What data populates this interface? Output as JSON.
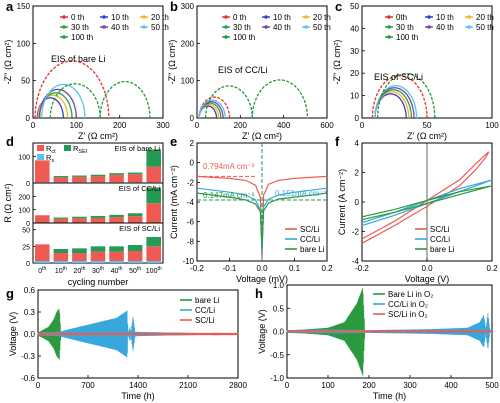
{
  "colors": {
    "c0": "#e8302a",
    "c10": "#2f3fd6",
    "c20": "#f2b71e",
    "c30": "#2e9c4a",
    "c40": "#6f4aa8",
    "c50": "#5cc2f0",
    "c100": "#1f9a3c",
    "red": "#ef5b52",
    "blue": "#37a7dc",
    "green": "#2b9a3f",
    "dgreen": "#249a55"
  },
  "chart_data": [
    {
      "panel": "a",
      "type": "line",
      "xlabel": "Z' (Ω cm²)",
      "ylabel": "-Z'' (Ω cm²)",
      "xlim": [
        0,
        300
      ],
      "ylim": [
        0,
        150
      ],
      "xticks": [
        0,
        100,
        200,
        300
      ],
      "yticks": [
        0,
        50,
        100,
        150
      ],
      "annotation": "EIS of bare Li",
      "legend": [
        "0 th",
        "10 th",
        "20 th",
        "30 th",
        "40 th",
        "50 th",
        "100 th"
      ],
      "series": [
        {
          "name": "0 th",
          "color": "c0",
          "dashed": true,
          "arcs": [
            [
              5,
              175,
              0.9
            ]
          ]
        },
        {
          "name": "10 th",
          "color": "c10",
          "dashed": false,
          "arcs": [
            [
              10,
              70,
              0.9
            ]
          ]
        },
        {
          "name": "20 th",
          "color": "c20",
          "dashed": false,
          "arcs": [
            [
              12,
              80,
              0.9
            ]
          ]
        },
        {
          "name": "30 th",
          "color": "c30",
          "dashed": false,
          "arcs": [
            [
              15,
              90,
              0.9
            ]
          ]
        },
        {
          "name": "40 th",
          "color": "c40",
          "dashed": false,
          "arcs": [
            [
              15,
              100,
              0.9
            ]
          ]
        },
        {
          "name": "50 th",
          "color": "c50",
          "dashed": false,
          "arcs": [
            [
              20,
              120,
              0.9
            ]
          ]
        },
        {
          "name": "100 th",
          "color": "c100",
          "dashed": true,
          "arcs": [
            [
              40,
              155,
              0.8
            ],
            [
              155,
              270,
              0.85
            ]
          ]
        }
      ]
    },
    {
      "panel": "b",
      "type": "line",
      "xlabel": "Z' (Ω cm²)",
      "ylabel": "-Z'' (Ω cm²)",
      "xlim": [
        0,
        600
      ],
      "ylim": [
        0,
        300
      ],
      "xticks": [
        0,
        200,
        400,
        600
      ],
      "yticks": [
        0,
        100,
        200,
        300
      ],
      "annotation": "EIS of CC/Li",
      "legend": [
        "0 th",
        "10 th",
        "20 th",
        "30 th",
        "40 th",
        "50 th",
        "100 th"
      ],
      "series": [
        {
          "name": "0 th",
          "color": "c0",
          "dashed": true,
          "arcs": [
            [
              10,
              150,
              0.8
            ]
          ]
        },
        {
          "name": "10 th",
          "color": "c10",
          "dashed": false,
          "arcs": [
            [
              10,
              90,
              0.8
            ]
          ]
        },
        {
          "name": "20 th",
          "color": "c20",
          "dashed": false,
          "arcs": [
            [
              10,
              100,
              0.8
            ]
          ]
        },
        {
          "name": "30 th",
          "color": "c30",
          "dashed": false,
          "arcs": [
            [
              10,
              110,
              0.8
            ]
          ]
        },
        {
          "name": "40 th",
          "color": "c40",
          "dashed": false,
          "arcs": [
            [
              10,
              120,
              0.8
            ]
          ]
        },
        {
          "name": "50 th",
          "color": "c50",
          "dashed": false,
          "arcs": [
            [
              10,
              130,
              0.8
            ]
          ]
        },
        {
          "name": "100 th",
          "color": "c100",
          "dashed": true,
          "arcs": [
            [
              40,
              255,
              0.8
            ],
            [
              255,
              510,
              0.8
            ]
          ]
        }
      ]
    },
    {
      "panel": "c",
      "type": "line",
      "xlabel": "Z' (Ω cm²)",
      "ylabel": "-Z'' (Ω cm²)",
      "xlim": [
        0,
        100
      ],
      "ylim": [
        0,
        50
      ],
      "xticks": [
        0,
        50,
        100
      ],
      "yticks": [
        0,
        10,
        20,
        30,
        40,
        50
      ],
      "annotation": "EIS of SC/Li",
      "legend": [
        "0th",
        "10 th",
        "20 th",
        "30 th",
        "40 th",
        "50 th",
        "100 th"
      ],
      "series": [
        {
          "name": "0th",
          "color": "c0",
          "dashed": true,
          "arcs": [
            [
              8,
              50,
              0.9
            ]
          ]
        },
        {
          "name": "10 th",
          "color": "c10",
          "dashed": false,
          "arcs": [
            [
              10,
              34,
              0.9
            ]
          ]
        },
        {
          "name": "20 th",
          "color": "c20",
          "dashed": false,
          "arcs": [
            [
              10,
              36,
              0.9
            ]
          ]
        },
        {
          "name": "30 th",
          "color": "c30",
          "dashed": false,
          "arcs": [
            [
              10,
              38,
              0.9
            ]
          ]
        },
        {
          "name": "40 th",
          "color": "c40",
          "dashed": false,
          "arcs": [
            [
              10,
              40,
              0.9
            ]
          ]
        },
        {
          "name": "50 th",
          "color": "c50",
          "dashed": false,
          "arcs": [
            [
              10,
              42,
              0.9
            ]
          ]
        },
        {
          "name": "100 th",
          "color": "c100",
          "dashed": true,
          "arcs": [
            [
              12,
              56,
              0.9
            ]
          ]
        }
      ]
    },
    {
      "panel": "d",
      "type": "bar",
      "xlabel": "cycling number",
      "ylabel": "R (Ω cm²)",
      "categories": [
        "0th",
        "10th",
        "20th",
        "30th",
        "40th",
        "50th",
        "100th"
      ],
      "legend": [
        "R_ct",
        "R_SEI",
        "R_s"
      ],
      "subplots": [
        {
          "label": "EIS of bare Li",
          "ylim": [
            0,
            150
          ],
          "yticks": [
            0,
            100
          ],
          "rct": [
            82,
            18,
            20,
            22,
            28,
            30,
            58
          ],
          "rsei": [
            0,
            5,
            5,
            6,
            6,
            6,
            65
          ],
          "rs": [
            3,
            3,
            3,
            3,
            3,
            3,
            3
          ]
        },
        {
          "label": "EIS of CC/Li",
          "ylim": [
            0,
            300
          ],
          "yticks": [
            0,
            100,
            200
          ],
          "rct": [
            55,
            28,
            32,
            35,
            40,
            48,
            145
          ],
          "rsei": [
            0,
            10,
            12,
            15,
            18,
            22,
            118
          ],
          "rs": [
            3,
            3,
            3,
            3,
            3,
            3,
            3
          ]
        },
        {
          "label": "EIS of SC/Li",
          "ylim": [
            0,
            60
          ],
          "yticks": [
            0,
            25,
            50
          ],
          "rct": [
            25,
            12,
            12,
            14,
            14,
            15,
            22
          ],
          "rsei": [
            0,
            6,
            7,
            8,
            8,
            9,
            14
          ],
          "rs": [
            3,
            3,
            3,
            3,
            3,
            3,
            3
          ]
        }
      ]
    },
    {
      "panel": "e",
      "type": "line",
      "xlabel": "Voltage (mV)",
      "ylabel": "Current (mA cm⁻²)",
      "xlim": [
        -0.2,
        0.2
      ],
      "ylim": [
        -10,
        2
      ],
      "xticks": [
        -0.2,
        -0.1,
        0.0,
        0.1,
        0.2
      ],
      "yticks": [
        -10,
        -8,
        -6,
        -4,
        -2,
        0,
        2
      ],
      "annotations": [
        "0.794mA cm⁻²",
        "0.147mA cm⁻²",
        "0.151mA cm⁻²"
      ],
      "legend": [
        "SC/Li",
        "CC/Li",
        "bare Li"
      ],
      "series": [
        {
          "name": "SC/Li",
          "color": "red",
          "x": [
            -0.2,
            -0.15,
            -0.1,
            -0.05,
            -0.02,
            -0.005,
            0,
            0.005,
            0.02,
            0.05,
            0.1,
            0.15,
            0.2
          ],
          "y": [
            -1.4,
            -1.5,
            -1.6,
            -1.8,
            -2.3,
            -3.5,
            -9.8,
            -3.3,
            -2.2,
            -1.8,
            -1.6,
            -1.5,
            -1.4
          ]
        },
        {
          "name": "CC/Li",
          "color": "blue",
          "x": [
            -0.2,
            -0.15,
            -0.1,
            -0.05,
            -0.02,
            -0.005,
            0,
            0.005,
            0.02,
            0.05,
            0.1,
            0.15,
            0.2
          ],
          "y": [
            -2.6,
            -2.8,
            -3.0,
            -3.3,
            -3.8,
            -4.8,
            -9.0,
            -4.5,
            -3.7,
            -3.3,
            -3.0,
            -2.8,
            -2.6
          ]
        },
        {
          "name": "bare Li",
          "color": "green",
          "x": [
            -0.2,
            -0.15,
            -0.1,
            -0.05,
            -0.02,
            -0.005,
            0,
            0.005,
            0.02,
            0.05,
            0.1,
            0.15,
            0.2
          ],
          "y": [
            -3.1,
            -3.3,
            -3.5,
            -3.8,
            -4.2,
            -5.0,
            -8.5,
            -4.9,
            -4.1,
            -3.7,
            -3.5,
            -3.3,
            -3.1
          ]
        }
      ]
    },
    {
      "panel": "f",
      "type": "line",
      "xlabel": "Voltage (V)",
      "ylabel": "Current (A cm⁻²)",
      "xlim": [
        -0.2,
        0.2
      ],
      "ylim": [
        -4,
        4
      ],
      "xticks": [
        -0.2,
        0.0,
        0.2
      ],
      "yticks": [
        -4,
        -2,
        0,
        2,
        4
      ],
      "legend": [
        "SC/Li",
        "CC/Li",
        "bare Li"
      ],
      "series": [
        {
          "name": "SC/Li",
          "color": "red",
          "x": [
            -0.2,
            -0.1,
            0,
            0.1,
            0.15,
            0.18,
            0.19,
            0.18,
            0.15,
            0.1,
            0,
            -0.1,
            -0.2
          ],
          "y": [
            -2.8,
            -1.6,
            -0.3,
            1.1,
            2.2,
            3.0,
            3.4,
            3.2,
            2.6,
            1.5,
            0.1,
            -1.3,
            -2.5
          ]
        },
        {
          "name": "CC/Li",
          "color": "blue",
          "x": [
            -0.2,
            -0.1,
            0,
            0.1,
            0.2,
            0.1,
            0,
            -0.1,
            -0.2
          ],
          "y": [
            -1.6,
            -0.9,
            -0.1,
            0.7,
            1.5,
            0.9,
            0.1,
            -0.7,
            -1.4
          ]
        },
        {
          "name": "bare Li",
          "color": "green",
          "x": [
            -0.2,
            -0.1,
            0,
            0.1,
            0.2,
            0.1,
            0,
            -0.1,
            -0.2
          ],
          "y": [
            -1.2,
            -0.7,
            -0.1,
            0.5,
            1.1,
            0.7,
            0.1,
            -0.5,
            -1.0
          ]
        }
      ]
    },
    {
      "panel": "g",
      "type": "area",
      "xlabel": "Time (h)",
      "ylabel": "Voltage (V)",
      "xlim": [
        0,
        2800
      ],
      "ylim": [
        -0.6,
        0.6
      ],
      "xticks": [
        0,
        700,
        1400,
        2100,
        2800
      ],
      "yticks": [
        -0.6,
        -0.3,
        0.0,
        0.3,
        0.6
      ],
      "legend": [
        "bare Li",
        "CC/Li",
        "SC/Li"
      ],
      "series": [
        {
          "name": "bare Li",
          "color": "green",
          "envelope": [
            [
              0,
              0.02
            ],
            [
              60,
              0.05
            ],
            [
              150,
              0.1
            ],
            [
              220,
              0.2
            ],
            [
              260,
              0.3
            ],
            [
              300,
              0.35
            ],
            [
              320,
              0.02
            ],
            [
              2800,
              0.0
            ]
          ]
        },
        {
          "name": "CC/Li",
          "color": "blue",
          "envelope": [
            [
              0,
              0.02
            ],
            [
              300,
              0.03
            ],
            [
              500,
              0.08
            ],
            [
              800,
              0.15
            ],
            [
              1100,
              0.22
            ],
            [
              1250,
              0.32
            ],
            [
              1260,
              0.02
            ],
            [
              1290,
              0.1
            ],
            [
              1300,
              0.02
            ],
            [
              1330,
              0.25
            ],
            [
              1360,
              0.03
            ],
            [
              2800,
              0.0
            ]
          ]
        },
        {
          "name": "SC/Li",
          "color": "red",
          "envelope": [
            [
              0,
              0.015
            ],
            [
              2800,
              0.015
            ]
          ]
        }
      ]
    },
    {
      "panel": "h",
      "type": "area",
      "xlabel": "Time (h)",
      "ylabel": "Voltage (V)",
      "xlim": [
        0,
        500
      ],
      "ylim": [
        -1.0,
        1.0
      ],
      "xticks": [
        0,
        100,
        200,
        300,
        400,
        500
      ],
      "yticks": [
        -1.0,
        -0.5,
        0.0,
        0.5,
        1.0
      ],
      "legend": [
        "Bare Li in O₂",
        "CC/Li in O₂",
        "SC/Li in O₂"
      ],
      "series": [
        {
          "name": "Bare Li in O₂",
          "color": "green",
          "envelope": [
            [
              0,
              0.03
            ],
            [
              40,
              0.04
            ],
            [
              100,
              0.08
            ],
            [
              140,
              0.2
            ],
            [
              170,
              0.6
            ],
            [
              185,
              0.95
            ],
            [
              190,
              0.02
            ],
            [
              500,
              0.0
            ]
          ]
        },
        {
          "name": "CC/Li in O₂",
          "color": "blue",
          "envelope": [
            [
              0,
              0.03
            ],
            [
              100,
              0.04
            ],
            [
              200,
              0.03
            ],
            [
              350,
              0.05
            ],
            [
              440,
              0.08
            ],
            [
              470,
              0.2
            ],
            [
              480,
              0.35
            ],
            [
              485,
              0.05
            ],
            [
              490,
              0.4
            ],
            [
              495,
              0.02
            ],
            [
              500,
              0.0
            ]
          ]
        },
        {
          "name": "SC/Li in O₂",
          "color": "red",
          "envelope": [
            [
              0,
              0.02
            ],
            [
              500,
              0.02
            ]
          ]
        }
      ]
    }
  ]
}
